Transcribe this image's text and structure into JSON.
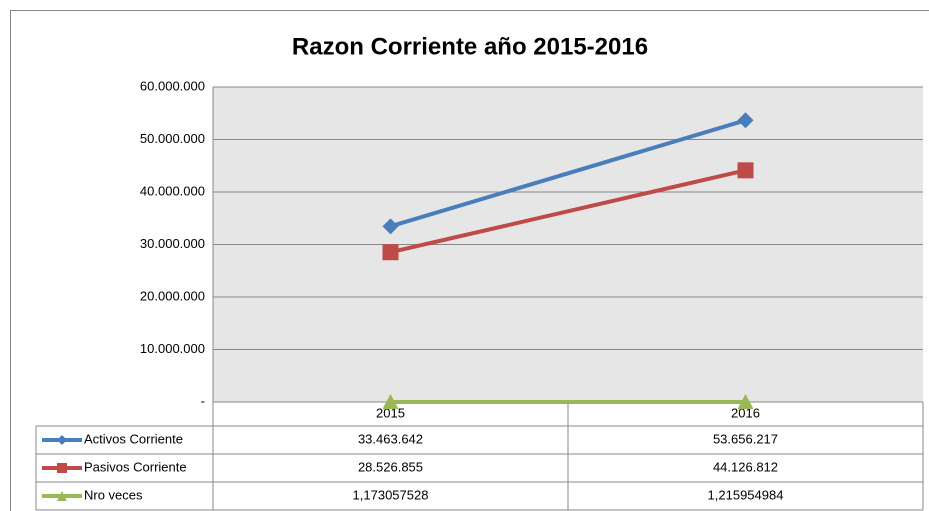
{
  "chart_data": {
    "type": "line",
    "title": "Razon Corriente año 2015-2016",
    "categories": [
      "2015",
      "2016"
    ],
    "series": [
      {
        "name": "Activos Corriente",
        "color": "#4a7ebb",
        "marker": "diamond",
        "values": [
          33463642,
          53656217
        ],
        "value_labels": [
          "33.463.642",
          "53.656.217"
        ]
      },
      {
        "name": "Pasivos Corriente",
        "color": "#be4b48",
        "marker": "square",
        "values": [
          28526855,
          44126812
        ],
        "value_labels": [
          "28.526.855",
          "44.126.812"
        ]
      },
      {
        "name": "Nro veces",
        "color": "#98b954",
        "marker": "triangle",
        "values": [
          1.173057528,
          1.215954984
        ],
        "value_labels": [
          "1,173057528",
          "1,215954984"
        ]
      }
    ],
    "ylim": [
      0,
      60000000
    ],
    "yticks": [
      {
        "value": 0,
        "label": "-"
      },
      {
        "value": 10000000,
        "label": "10.000.000"
      },
      {
        "value": 20000000,
        "label": "20.000.000"
      },
      {
        "value": 30000000,
        "label": "30.000.000"
      },
      {
        "value": 40000000,
        "label": "40.000.000"
      },
      {
        "value": 50000000,
        "label": "50.000.000"
      },
      {
        "value": 60000000,
        "label": "60.000.000"
      }
    ],
    "grid": true,
    "legend": "data-table"
  }
}
